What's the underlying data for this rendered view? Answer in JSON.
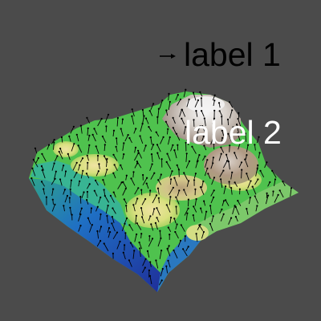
{
  "labels": {
    "label1": "label 1",
    "label2": "label 2"
  },
  "colors": {
    "background": "#4b4b4b",
    "label_text": "#ffffff",
    "glyph": "#000000",
    "colormap": [
      "#1f2f9a",
      "#1f74c9",
      "#2fb3a3",
      "#46c24b",
      "#c7e06b",
      "#ead99a",
      "#c0a883",
      "#9a8a7e",
      "#f3f3f3"
    ]
  },
  "visualization": {
    "type": "3d-elevation-surface",
    "glyphs": "arrow-vectors"
  }
}
